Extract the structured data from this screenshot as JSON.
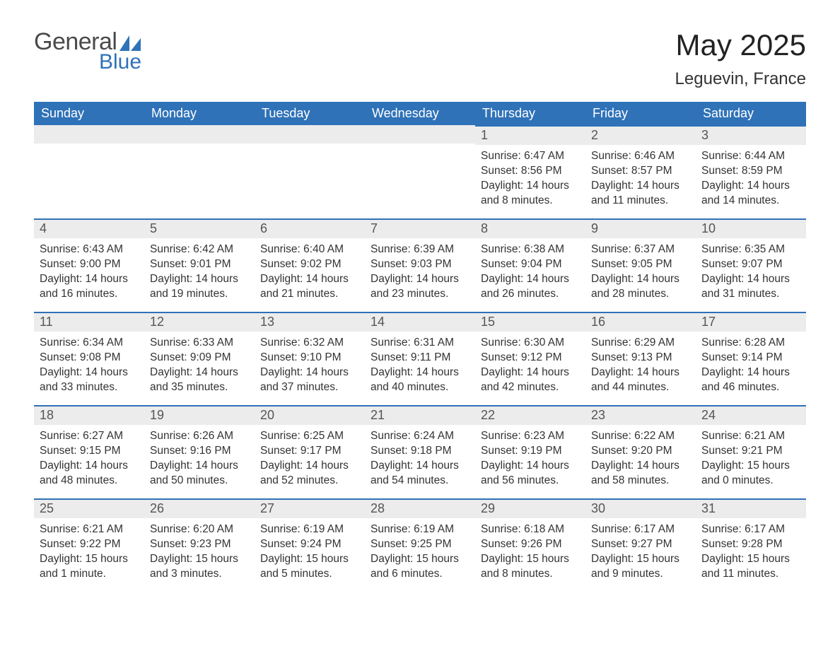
{
  "brand": {
    "word1": "General",
    "word2": "Blue",
    "sail_color": "#2f72b8",
    "text_gray": "#4a4a4a"
  },
  "title": "May 2025",
  "location": "Leguevin, France",
  "theme": {
    "header_bg": "#2f72b8",
    "header_fg": "#ffffff",
    "daybar_bg": "#ececec",
    "daybar_border": "#2f72b8",
    "body_bg": "#ffffff",
    "text_color": "#333333"
  },
  "weekdays": [
    "Sunday",
    "Monday",
    "Tuesday",
    "Wednesday",
    "Thursday",
    "Friday",
    "Saturday"
  ],
  "weeks": [
    [
      null,
      null,
      null,
      null,
      {
        "d": "1",
        "sr": "6:47 AM",
        "ss": "8:56 PM",
        "dl": "14 hours and 8 minutes."
      },
      {
        "d": "2",
        "sr": "6:46 AM",
        "ss": "8:57 PM",
        "dl": "14 hours and 11 minutes."
      },
      {
        "d": "3",
        "sr": "6:44 AM",
        "ss": "8:59 PM",
        "dl": "14 hours and 14 minutes."
      }
    ],
    [
      {
        "d": "4",
        "sr": "6:43 AM",
        "ss": "9:00 PM",
        "dl": "14 hours and 16 minutes."
      },
      {
        "d": "5",
        "sr": "6:42 AM",
        "ss": "9:01 PM",
        "dl": "14 hours and 19 minutes."
      },
      {
        "d": "6",
        "sr": "6:40 AM",
        "ss": "9:02 PM",
        "dl": "14 hours and 21 minutes."
      },
      {
        "d": "7",
        "sr": "6:39 AM",
        "ss": "9:03 PM",
        "dl": "14 hours and 23 minutes."
      },
      {
        "d": "8",
        "sr": "6:38 AM",
        "ss": "9:04 PM",
        "dl": "14 hours and 26 minutes."
      },
      {
        "d": "9",
        "sr": "6:37 AM",
        "ss": "9:05 PM",
        "dl": "14 hours and 28 minutes."
      },
      {
        "d": "10",
        "sr": "6:35 AM",
        "ss": "9:07 PM",
        "dl": "14 hours and 31 minutes."
      }
    ],
    [
      {
        "d": "11",
        "sr": "6:34 AM",
        "ss": "9:08 PM",
        "dl": "14 hours and 33 minutes."
      },
      {
        "d": "12",
        "sr": "6:33 AM",
        "ss": "9:09 PM",
        "dl": "14 hours and 35 minutes."
      },
      {
        "d": "13",
        "sr": "6:32 AM",
        "ss": "9:10 PM",
        "dl": "14 hours and 37 minutes."
      },
      {
        "d": "14",
        "sr": "6:31 AM",
        "ss": "9:11 PM",
        "dl": "14 hours and 40 minutes."
      },
      {
        "d": "15",
        "sr": "6:30 AM",
        "ss": "9:12 PM",
        "dl": "14 hours and 42 minutes."
      },
      {
        "d": "16",
        "sr": "6:29 AM",
        "ss": "9:13 PM",
        "dl": "14 hours and 44 minutes."
      },
      {
        "d": "17",
        "sr": "6:28 AM",
        "ss": "9:14 PM",
        "dl": "14 hours and 46 minutes."
      }
    ],
    [
      {
        "d": "18",
        "sr": "6:27 AM",
        "ss": "9:15 PM",
        "dl": "14 hours and 48 minutes."
      },
      {
        "d": "19",
        "sr": "6:26 AM",
        "ss": "9:16 PM",
        "dl": "14 hours and 50 minutes."
      },
      {
        "d": "20",
        "sr": "6:25 AM",
        "ss": "9:17 PM",
        "dl": "14 hours and 52 minutes."
      },
      {
        "d": "21",
        "sr": "6:24 AM",
        "ss": "9:18 PM",
        "dl": "14 hours and 54 minutes."
      },
      {
        "d": "22",
        "sr": "6:23 AM",
        "ss": "9:19 PM",
        "dl": "14 hours and 56 minutes."
      },
      {
        "d": "23",
        "sr": "6:22 AM",
        "ss": "9:20 PM",
        "dl": "14 hours and 58 minutes."
      },
      {
        "d": "24",
        "sr": "6:21 AM",
        "ss": "9:21 PM",
        "dl": "15 hours and 0 minutes."
      }
    ],
    [
      {
        "d": "25",
        "sr": "6:21 AM",
        "ss": "9:22 PM",
        "dl": "15 hours and 1 minute."
      },
      {
        "d": "26",
        "sr": "6:20 AM",
        "ss": "9:23 PM",
        "dl": "15 hours and 3 minutes."
      },
      {
        "d": "27",
        "sr": "6:19 AM",
        "ss": "9:24 PM",
        "dl": "15 hours and 5 minutes."
      },
      {
        "d": "28",
        "sr": "6:19 AM",
        "ss": "9:25 PM",
        "dl": "15 hours and 6 minutes."
      },
      {
        "d": "29",
        "sr": "6:18 AM",
        "ss": "9:26 PM",
        "dl": "15 hours and 8 minutes."
      },
      {
        "d": "30",
        "sr": "6:17 AM",
        "ss": "9:27 PM",
        "dl": "15 hours and 9 minutes."
      },
      {
        "d": "31",
        "sr": "6:17 AM",
        "ss": "9:28 PM",
        "dl": "15 hours and 11 minutes."
      }
    ]
  ],
  "labels": {
    "sunrise": "Sunrise: ",
    "sunset": "Sunset: ",
    "daylight": "Daylight: "
  }
}
